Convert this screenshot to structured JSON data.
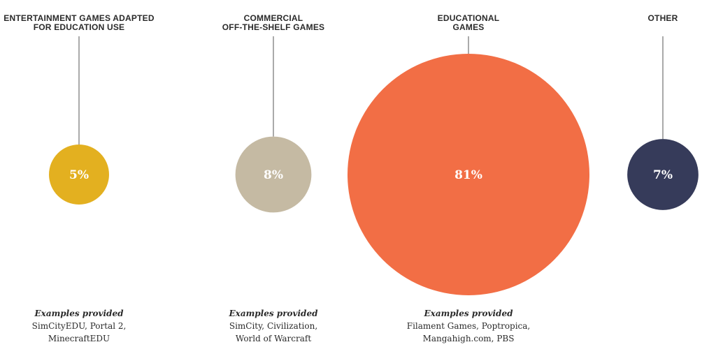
{
  "chart_data": {
    "type": "bubble",
    "categories": [
      {
        "name": "ENTERTAINMENT GAMES ADAPTED\nFOR EDUCATION USE",
        "value": 5,
        "label": "5%",
        "color": "#E3B020",
        "examples_header": "Examples provided",
        "examples": "SimCityEDU, Portal 2,\nMinecraftEDU"
      },
      {
        "name": "COMMERCIAL\nOFF-THE-SHELF GAMES",
        "value": 8,
        "label": "8%",
        "color": "#C5BAA3",
        "examples_header": "Examples provided",
        "examples": "SimCity, Civilization,\nWorld of Warcraft"
      },
      {
        "name": "EDUCATIONAL\nGAMES",
        "value": 81,
        "label": "81%",
        "color": "#F26E45",
        "examples_header": "Examples provided",
        "examples": "Filament Games, Poptropica,\nMangahigh.com, PBS"
      },
      {
        "name": "OTHER",
        "value": 7,
        "label": "7%",
        "color": "#363B5A",
        "examples_header": "",
        "examples": ""
      }
    ]
  }
}
